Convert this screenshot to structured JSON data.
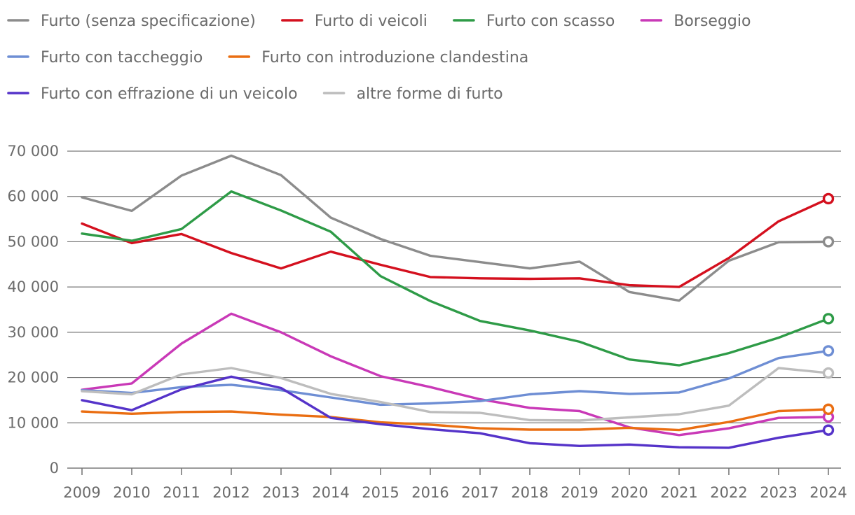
{
  "chart_data": {
    "type": "line",
    "x": [
      2009,
      2010,
      2011,
      2012,
      2013,
      2014,
      2015,
      2016,
      2017,
      2018,
      2019,
      2020,
      2021,
      2022,
      2023,
      2024
    ],
    "x_labels": [
      "2009",
      "2010",
      "2011",
      "2012",
      "2013",
      "2014",
      "2015",
      "2016",
      "2017",
      "2018",
      "2019",
      "2020",
      "2021",
      "2022",
      "2023",
      "2024"
    ],
    "ylim": [
      0,
      70000
    ],
    "y_ticks": [
      0,
      10000,
      20000,
      30000,
      40000,
      50000,
      60000,
      70000
    ],
    "y_tick_labels": [
      "0",
      "10 000",
      "20 000",
      "30 000",
      "40 000",
      "50 000",
      "60 000",
      "70 000"
    ],
    "grid": true,
    "legend_position": "top",
    "end_markers": true,
    "series": [
      {
        "name": "Furto (senza specificazione)",
        "color": "#8c8c8c",
        "values": [
          59800,
          56800,
          64600,
          69000,
          64700,
          55300,
          50600,
          46900,
          45500,
          44100,
          45600,
          38900,
          37000,
          45800,
          49900,
          50000
        ]
      },
      {
        "name": "Furto di veicoli",
        "color": "#d4101e",
        "values": [
          54000,
          49700,
          51700,
          47500,
          44100,
          47800,
          44900,
          42200,
          41900,
          41800,
          41900,
          40400,
          40000,
          46400,
          54500,
          59500
        ]
      },
      {
        "name": "Furto con scasso",
        "color": "#2e9b47",
        "values": [
          51800,
          50200,
          52800,
          61100,
          56900,
          52200,
          42400,
          36900,
          32500,
          30400,
          27900,
          24000,
          22700,
          25400,
          28800,
          33000
        ]
      },
      {
        "name": "Borseggio",
        "color": "#c939b7",
        "values": [
          17300,
          18700,
          27500,
          34100,
          30000,
          24700,
          20300,
          17900,
          15200,
          13300,
          12600,
          9000,
          7300,
          8800,
          11100,
          11300
        ]
      },
      {
        "name": "Furto con taccheggio",
        "color": "#6e8ed4",
        "values": [
          17200,
          16600,
          17900,
          18400,
          17200,
          15600,
          14000,
          14300,
          14800,
          16300,
          17000,
          16400,
          16700,
          19800,
          24300,
          25900
        ]
      },
      {
        "name": "Furto con introduzione clandestina",
        "color": "#ea6e12",
        "values": [
          12500,
          12000,
          12400,
          12500,
          11800,
          11300,
          10100,
          9600,
          8800,
          8500,
          8500,
          8900,
          8400,
          10200,
          12600,
          13000
        ]
      },
      {
        "name": "Furto con effrazione di un veicolo",
        "color": "#5533c9",
        "values": [
          15000,
          12800,
          17400,
          20200,
          17700,
          11100,
          9700,
          8600,
          7700,
          5500,
          4900,
          5200,
          4600,
          4500,
          6700,
          8400
        ]
      },
      {
        "name": "altre forme di furto",
        "color": "#bdbdbd",
        "values": [
          17000,
          16300,
          20700,
          22100,
          19900,
          16400,
          14600,
          12400,
          12200,
          10600,
          10500,
          11200,
          11900,
          13800,
          22100,
          21000
        ]
      }
    ]
  }
}
